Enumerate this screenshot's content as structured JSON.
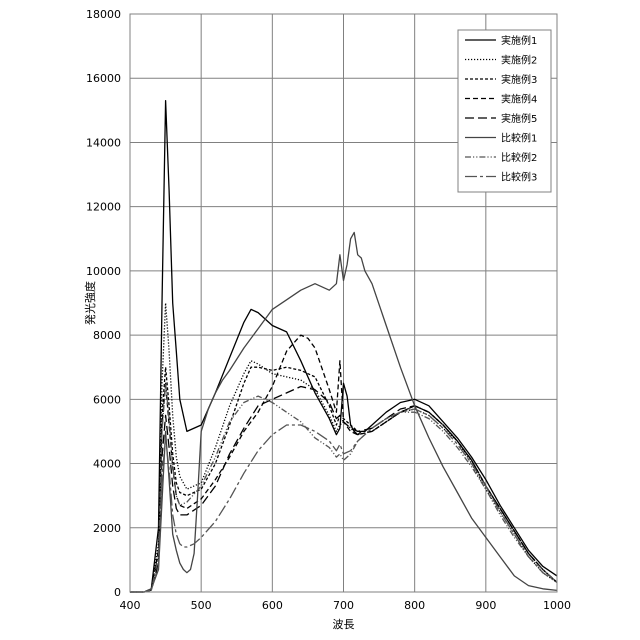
{
  "chart_data": {
    "type": "line",
    "xlabel": "波長",
    "ylabel": "発光強度",
    "xlim": [
      400,
      1000
    ],
    "ylim": [
      0,
      18000
    ],
    "xticks": [
      400,
      500,
      600,
      700,
      800,
      900,
      1000
    ],
    "yticks": [
      0,
      2000,
      4000,
      6000,
      8000,
      10000,
      12000,
      14000,
      16000,
      18000
    ],
    "grid": true,
    "legend_position": "top-right",
    "series": [
      {
        "name": "実施例1",
        "color": "#000000",
        "dash": "",
        "x": [
          400,
          420,
          430,
          440,
          445,
          450,
          455,
          460,
          465,
          470,
          480,
          500,
          520,
          540,
          560,
          570,
          580,
          600,
          620,
          640,
          660,
          680,
          690,
          695,
          700,
          705,
          710,
          715,
          720,
          725,
          730,
          740,
          760,
          780,
          800,
          820,
          840,
          860,
          880,
          900,
          920,
          940,
          960,
          980,
          1000
        ],
        "y": [
          0,
          0,
          100,
          2000,
          9000,
          15300,
          12500,
          9000,
          7500,
          6000,
          5000,
          5200,
          6200,
          7300,
          8400,
          8800,
          8700,
          8300,
          8100,
          7200,
          6200,
          5400,
          4900,
          5100,
          6500,
          6100,
          5200,
          5000,
          4900,
          5000,
          5000,
          5200,
          5600,
          5900,
          6000,
          5800,
          5300,
          4800,
          4200,
          3500,
          2700,
          2000,
          1300,
          800,
          500
        ]
      },
      {
        "name": "実施例2",
        "color": "#000000",
        "dash": "1.2 1.8",
        "x": [
          400,
          420,
          430,
          440,
          445,
          450,
          455,
          460,
          465,
          470,
          480,
          500,
          520,
          540,
          560,
          570,
          580,
          600,
          620,
          640,
          660,
          680,
          690,
          695,
          700,
          710,
          720,
          740,
          760,
          780,
          800,
          820,
          840,
          860,
          880,
          900,
          920,
          940,
          960,
          980,
          1000
        ],
        "y": [
          0,
          0,
          100,
          1500,
          6500,
          9000,
          7500,
          5500,
          4200,
          3600,
          3200,
          3400,
          4500,
          5800,
          6800,
          7200,
          7100,
          6800,
          6700,
          6600,
          6300,
          5500,
          5000,
          5200,
          5300,
          5100,
          4900,
          5000,
          5300,
          5600,
          5700,
          5500,
          5100,
          4700,
          4000,
          3200,
          2500,
          1800,
          1100,
          600,
          300
        ]
      },
      {
        "name": "実施例3",
        "color": "#000000",
        "dash": "3 2",
        "x": [
          400,
          420,
          430,
          440,
          445,
          450,
          455,
          460,
          465,
          470,
          480,
          500,
          520,
          540,
          560,
          570,
          580,
          600,
          620,
          640,
          660,
          680,
          690,
          695,
          700,
          710,
          720,
          740,
          760,
          780,
          800,
          820,
          840,
          860,
          880,
          900,
          920,
          940,
          960,
          980,
          1000
        ],
        "y": [
          0,
          0,
          80,
          1200,
          5500,
          7000,
          5800,
          4300,
          3400,
          3100,
          3000,
          3200,
          4000,
          5200,
          6500,
          7000,
          7000,
          6900,
          7000,
          6900,
          6700,
          5800,
          5200,
          5500,
          5400,
          5200,
          5000,
          5000,
          5300,
          5600,
          5800,
          5600,
          5200,
          4700,
          4100,
          3300,
          2600,
          1900,
          1200,
          700,
          300
        ]
      },
      {
        "name": "実施例4",
        "color": "#000000",
        "dash": "5 3",
        "x": [
          400,
          420,
          430,
          440,
          445,
          450,
          455,
          460,
          465,
          470,
          480,
          500,
          520,
          540,
          560,
          580,
          600,
          620,
          640,
          650,
          660,
          680,
          690,
          695,
          700,
          710,
          720,
          740,
          760,
          780,
          800,
          820,
          840,
          860,
          880,
          900,
          920,
          940,
          960,
          980,
          1000
        ],
        "y": [
          0,
          0,
          80,
          1300,
          5200,
          6500,
          5200,
          3900,
          3000,
          2700,
          2600,
          2900,
          3500,
          4200,
          5000,
          5600,
          6400,
          7500,
          8000,
          7900,
          7600,
          6300,
          5600,
          7200,
          5300,
          5000,
          4900,
          5000,
          5300,
          5600,
          5800,
          5600,
          5200,
          4700,
          4100,
          3300,
          2600,
          1900,
          1200,
          700,
          300
        ]
      },
      {
        "name": "実施例5",
        "color": "#000000",
        "dash": "9 4",
        "x": [
          400,
          420,
          430,
          440,
          445,
          450,
          455,
          460,
          465,
          470,
          480,
          500,
          520,
          540,
          560,
          580,
          600,
          620,
          640,
          660,
          680,
          690,
          695,
          700,
          710,
          720,
          740,
          760,
          780,
          800,
          820,
          840,
          860,
          880,
          900,
          920,
          940,
          960,
          980,
          1000
        ],
        "y": [
          0,
          0,
          60,
          900,
          4200,
          5500,
          4500,
          3300,
          2600,
          2400,
          2400,
          2700,
          3300,
          4300,
          5100,
          5800,
          6000,
          6200,
          6400,
          6300,
          5900,
          5400,
          5500,
          5300,
          5100,
          5000,
          5100,
          5400,
          5700,
          5800,
          5600,
          5200,
          4700,
          4100,
          3300,
          2600,
          1900,
          1200,
          700,
          300
        ]
      },
      {
        "name": "比較例1",
        "color": "#444444",
        "dash": "",
        "x": [
          400,
          420,
          430,
          440,
          450,
          455,
          460,
          465,
          470,
          475,
          480,
          485,
          490,
          495,
          500,
          510,
          520,
          530,
          540,
          560,
          580,
          600,
          620,
          640,
          660,
          680,
          690,
          695,
          700,
          705,
          710,
          715,
          720,
          725,
          730,
          740,
          760,
          780,
          800,
          820,
          840,
          860,
          880,
          900,
          920,
          940,
          960,
          980,
          1000
        ],
        "y": [
          0,
          0,
          100,
          700,
          5000,
          3500,
          1800,
          1300,
          900,
          700,
          600,
          700,
          1200,
          3000,
          5000,
          5700,
          6200,
          6600,
          6900,
          7600,
          8200,
          8800,
          9100,
          9400,
          9600,
          9400,
          9600,
          10500,
          9700,
          10200,
          11000,
          11200,
          10500,
          10400,
          10000,
          9600,
          8300,
          7000,
          5800,
          4800,
          3900,
          3100,
          2300,
          1700,
          1100,
          500,
          200,
          100,
          50
        ]
      },
      {
        "name": "比較例2",
        "color": "#555555",
        "dash": "6 2 1.2 2 1.2 2",
        "x": [
          400,
          420,
          430,
          440,
          445,
          450,
          455,
          460,
          465,
          470,
          480,
          500,
          520,
          540,
          560,
          580,
          600,
          620,
          640,
          660,
          680,
          690,
          695,
          700,
          710,
          720,
          740,
          760,
          780,
          800,
          820,
          840,
          860,
          880,
          900,
          920,
          940,
          960,
          980,
          1000
        ],
        "y": [
          0,
          0,
          60,
          1100,
          5000,
          6500,
          5400,
          3900,
          3000,
          2700,
          2800,
          3300,
          4200,
          5300,
          5900,
          6100,
          5900,
          5600,
          5300,
          4800,
          4500,
          4200,
          4300,
          4100,
          4300,
          4700,
          5100,
          5400,
          5600,
          5600,
          5400,
          5000,
          4500,
          3900,
          3200,
          2400,
          1700,
          1100,
          700,
          300
        ]
      },
      {
        "name": "比較例3",
        "color": "#555555",
        "dash": "12 3 3 3",
        "x": [
          400,
          420,
          430,
          440,
          445,
          450,
          455,
          460,
          465,
          470,
          475,
          480,
          490,
          500,
          520,
          540,
          560,
          580,
          600,
          620,
          640,
          660,
          680,
          690,
          695,
          700,
          710,
          720,
          740,
          760,
          780,
          800,
          820,
          840,
          860,
          880,
          900,
          920,
          940,
          960,
          980,
          1000
        ],
        "y": [
          0,
          0,
          60,
          800,
          3600,
          4800,
          3800,
          2400,
          1800,
          1500,
          1400,
          1400,
          1500,
          1700,
          2200,
          2900,
          3700,
          4400,
          4900,
          5200,
          5200,
          5000,
          4700,
          4400,
          4600,
          4300,
          4400,
          4700,
          5100,
          5400,
          5600,
          5700,
          5500,
          5100,
          4600,
          4000,
          3300,
          2500,
          1800,
          1100,
          600,
          300
        ]
      }
    ]
  }
}
